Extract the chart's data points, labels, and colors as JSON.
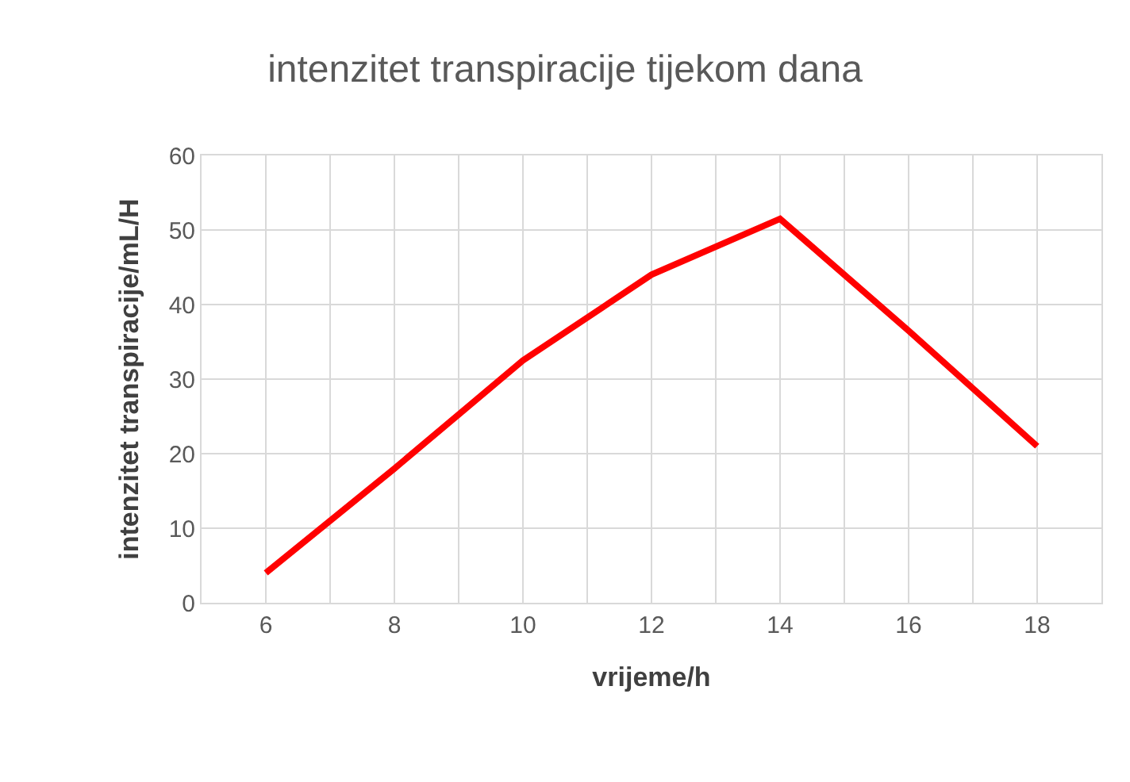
{
  "chart_data": {
    "type": "line",
    "title": "intenzitet transpiracije tijekom dana",
    "xlabel": "vrijeme/h",
    "ylabel": "intenzitet transpiracije/mL/H",
    "x": [
      6,
      8,
      10,
      12,
      14,
      16,
      18
    ],
    "series": [
      {
        "color": "#ff0000",
        "values": [
          4,
          18,
          32.5,
          44,
          51.5,
          36.5,
          21
        ]
      }
    ],
    "xlim": [
      5,
      19
    ],
    "xticks": [
      6,
      8,
      10,
      12,
      14,
      16,
      18
    ],
    "ylim": [
      0,
      60
    ],
    "yticks": [
      0,
      10,
      20,
      30,
      40,
      50,
      60
    ],
    "grid": true,
    "marker": "none",
    "line_style": "solid"
  }
}
